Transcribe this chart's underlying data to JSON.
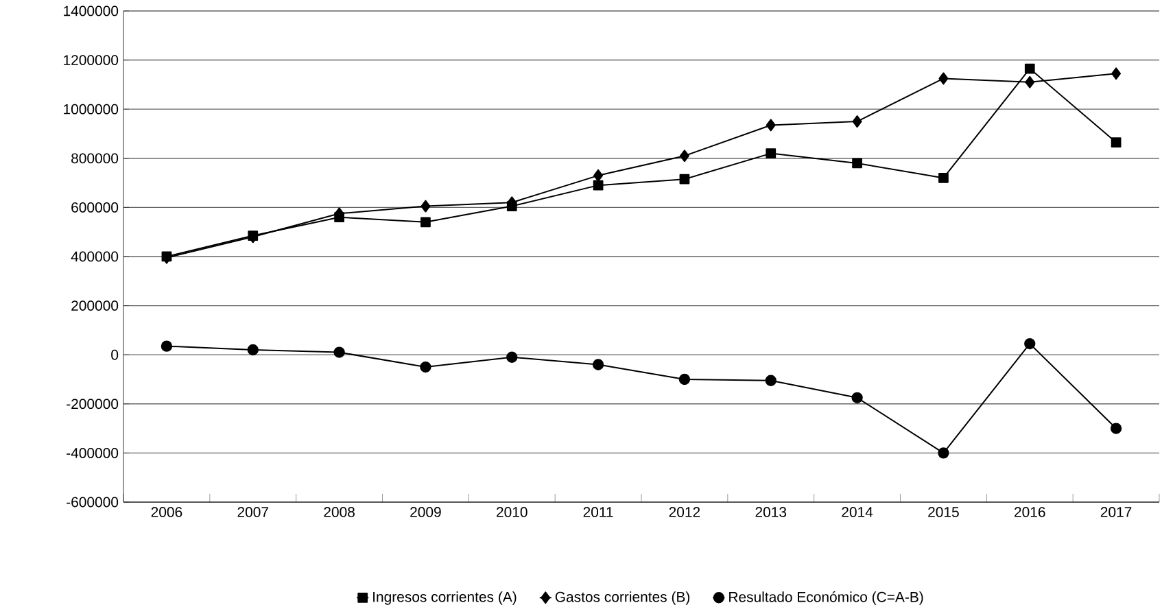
{
  "chart_data": {
    "type": "line",
    "categories": [
      "2006",
      "2007",
      "2008",
      "2009",
      "2010",
      "2011",
      "2012",
      "2013",
      "2014",
      "2015",
      "2016",
      "2017"
    ],
    "series": [
      {
        "name": "Ingresos corrientes (A)",
        "color": "#000000",
        "marker": "square",
        "values": [
          400000,
          485000,
          560000,
          540000,
          605000,
          690000,
          715000,
          820000,
          780000,
          720000,
          1165000,
          865000
        ]
      },
      {
        "name": "Gastos corrientes (B)",
        "color": "#000000",
        "marker": "diamond",
        "values": [
          395000,
          480000,
          575000,
          605000,
          620000,
          730000,
          810000,
          935000,
          950000,
          1125000,
          1110000,
          1145000
        ]
      },
      {
        "name": "Resultado Económico (C=A-B)",
        "color": "#000000",
        "marker": "circle",
        "values": [
          35000,
          20000,
          10000,
          -50000,
          -10000,
          -40000,
          -100000,
          -105000,
          -175000,
          -400000,
          45000,
          -300000
        ]
      }
    ],
    "ylim": [
      -600000,
      1400000
    ],
    "yticks": [
      -600000,
      -400000,
      -200000,
      0,
      200000,
      400000,
      600000,
      800000,
      1000000,
      1200000,
      1400000
    ],
    "grid": "y",
    "legend": "bottom",
    "line_style": "solid"
  }
}
